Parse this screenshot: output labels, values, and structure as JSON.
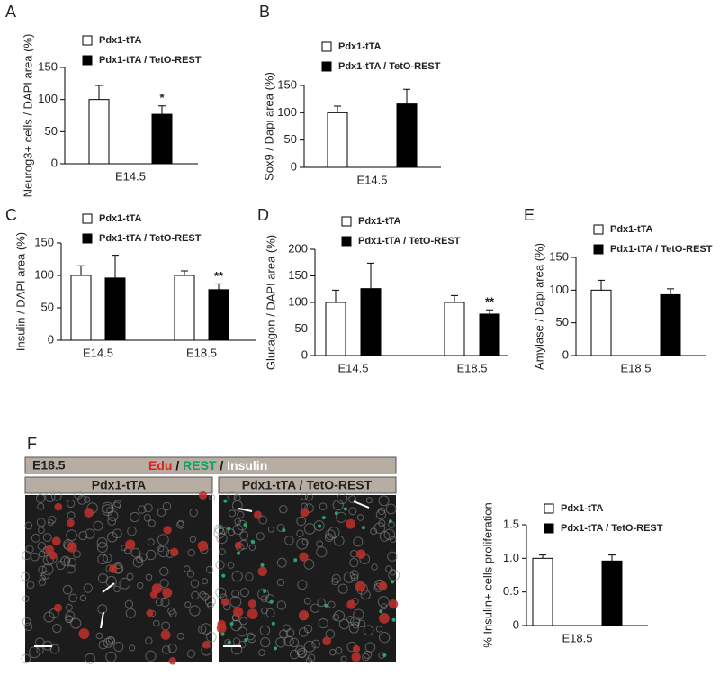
{
  "panels": [
    "A",
    "B",
    "C",
    "D",
    "E",
    "F"
  ],
  "figure_f": {
    "stage": "E18.5",
    "stain": [
      "Edu",
      "/",
      "REST",
      "/",
      "Insulin"
    ],
    "groups": [
      "Pdx1-tTA",
      "Pdx1-tTA / TetO-REST"
    ]
  },
  "chart_data": [
    {
      "type": "bar",
      "y_label": "Neurog3+ cells / DAPI area (%)",
      "categories": [
        "E14.5"
      ],
      "series": [
        {
          "name": "Pdx1-tTA",
          "color": "#ffffff",
          "values": [
            100
          ],
          "errors": [
            22
          ]
        },
        {
          "name": "Pdx1-tTA / TetO-REST",
          "color": "#000000",
          "values": [
            77
          ],
          "errors": [
            13
          ],
          "significance": [
            "*"
          ]
        }
      ],
      "ylim": [
        0,
        150
      ],
      "yticks": [
        0,
        50,
        100,
        150
      ]
    },
    {
      "type": "bar",
      "y_label": "Sox9 / Dapi area (%)",
      "categories": [
        "E14.5"
      ],
      "series": [
        {
          "name": "Pdx1-tTA",
          "color": "#ffffff",
          "values": [
            100
          ],
          "errors": [
            12
          ]
        },
        {
          "name": "Pdx1-tTA / TetO-REST",
          "color": "#000000",
          "values": [
            116
          ],
          "errors": [
            27
          ]
        }
      ],
      "ylim": [
        0,
        150
      ],
      "yticks": [
        0,
        50,
        100,
        150
      ]
    },
    {
      "type": "bar",
      "y_label": "Insulin / DAPI area (%)",
      "categories": [
        "E14.5",
        "E18.5"
      ],
      "series": [
        {
          "name": "Pdx1-tTA",
          "color": "#ffffff",
          "values": [
            100,
            100
          ],
          "errors": [
            15,
            7
          ]
        },
        {
          "name": "Pdx1-tTA / TetO-REST",
          "color": "#000000",
          "values": [
            96,
            78
          ],
          "errors": [
            35,
            9
          ],
          "significance": [
            null,
            "**"
          ]
        }
      ],
      "ylim": [
        0,
        150
      ],
      "yticks": [
        0,
        50,
        100,
        150
      ]
    },
    {
      "type": "bar",
      "y_label": "Glucagon / DAPI area (%)",
      "categories": [
        "E14.5",
        "E18.5"
      ],
      "series": [
        {
          "name": "Pdx1-tTA",
          "color": "#ffffff",
          "values": [
            100,
            100
          ],
          "errors": [
            23,
            13
          ]
        },
        {
          "name": "Pdx1-tTA / TetO-REST",
          "color": "#000000",
          "values": [
            126,
            78
          ],
          "errors": [
            48,
            8
          ],
          "significance": [
            null,
            "**"
          ]
        }
      ],
      "ylim": [
        0,
        200
      ],
      "yticks": [
        0,
        50,
        100,
        150,
        200
      ]
    },
    {
      "type": "bar",
      "y_label": "Amylase / Dapi area (%)",
      "categories": [
        "E18.5"
      ],
      "series": [
        {
          "name": "Pdx1-tTA",
          "color": "#ffffff",
          "values": [
            100
          ],
          "errors": [
            15
          ]
        },
        {
          "name": "Pdx1-tTA / TetO-REST",
          "color": "#000000",
          "values": [
            93
          ],
          "errors": [
            9
          ]
        }
      ],
      "ylim": [
        0,
        150
      ],
      "yticks": [
        0,
        50,
        100,
        150
      ]
    },
    {
      "type": "bar",
      "y_label": "% Insulin+ cells proliferation",
      "categories": [
        "E18.5"
      ],
      "series": [
        {
          "name": "Pdx1-tTA",
          "color": "#ffffff",
          "values": [
            1.0
          ],
          "errors": [
            0.05
          ]
        },
        {
          "name": "Pdx1-tTA / TetO-REST",
          "color": "#000000",
          "values": [
            0.96
          ],
          "errors": [
            0.09
          ]
        }
      ],
      "ylim": [
        0,
        1.5
      ],
      "yticks": [
        0,
        0.5,
        {
          "value": 1,
          "label": "1.0"
        },
        1.5
      ]
    }
  ]
}
